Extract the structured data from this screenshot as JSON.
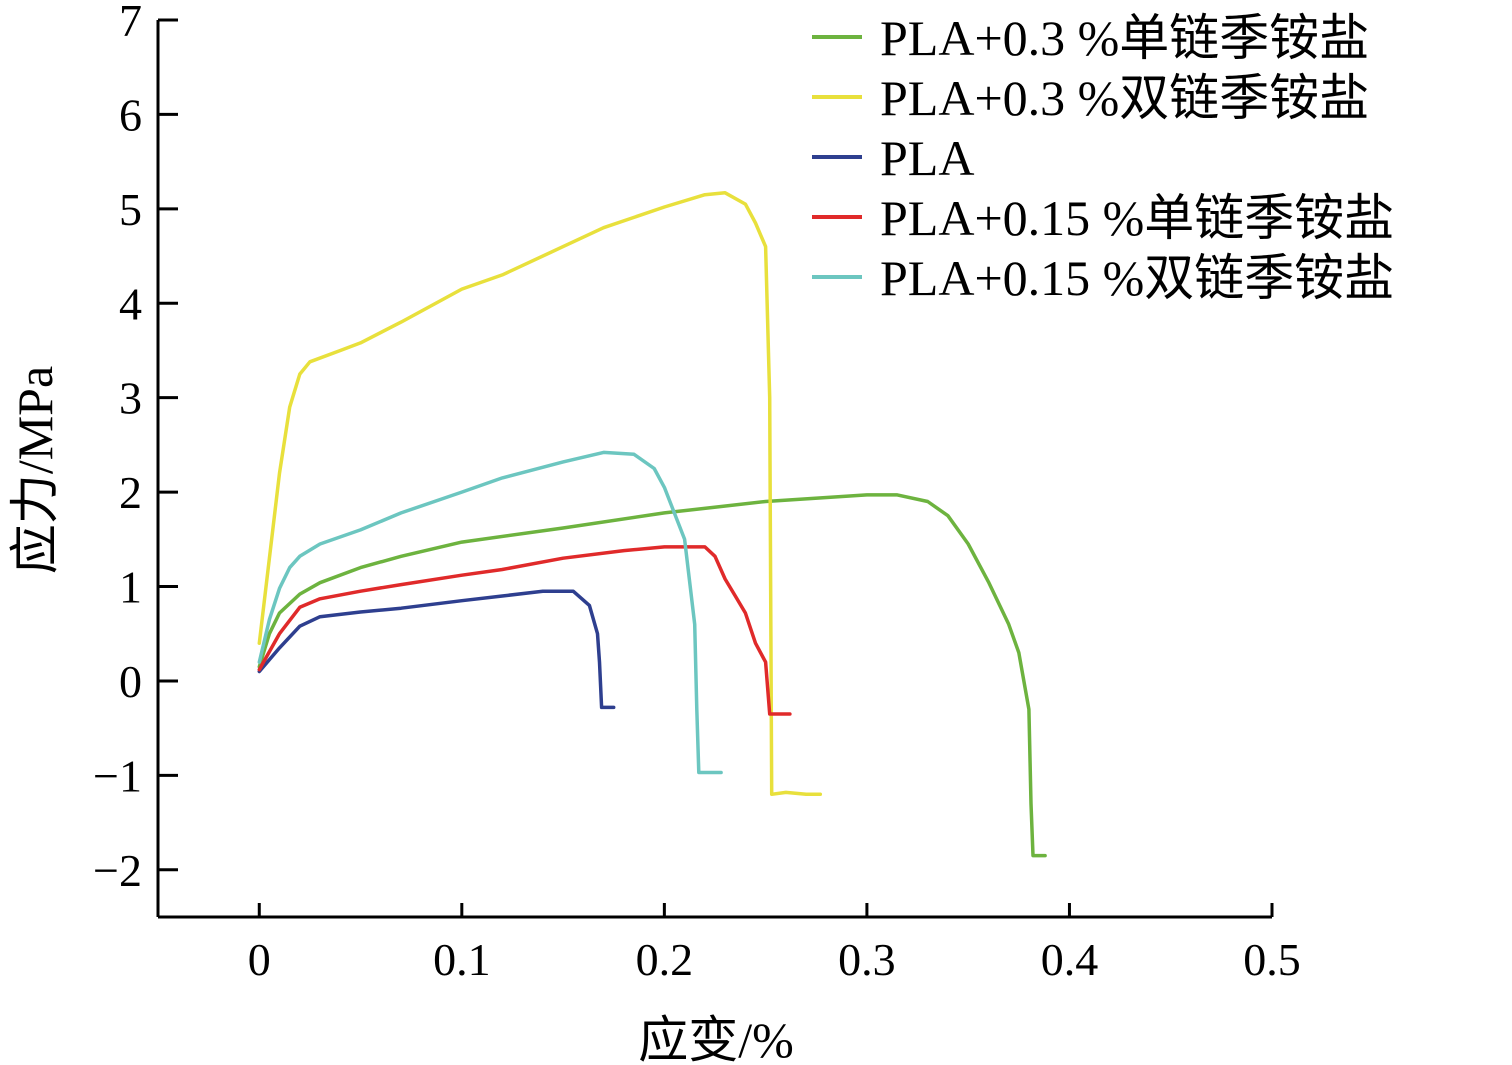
{
  "chart_data": {
    "type": "line",
    "xlabel": "应变/%",
    "ylabel": "应力/MPa",
    "xlim": [
      -0.05,
      0.5
    ],
    "ylim": [
      -2.5,
      7
    ],
    "xticks": [
      0,
      0.1,
      0.2,
      0.3,
      0.4,
      0.5
    ],
    "xtick_labels": [
      "0",
      "0.1",
      "0.2",
      "0.3",
      "0.4",
      "0.5"
    ],
    "yticks": [
      -2,
      -1,
      0,
      1,
      2,
      3,
      4,
      5,
      6,
      7
    ],
    "ytick_labels": [
      "−2",
      "−1",
      "0",
      "1",
      "2",
      "3",
      "4",
      "5",
      "6",
      "7"
    ],
    "grid": false,
    "legend_position": "top-right",
    "series": [
      {
        "name": "PLA+0.3 %单链季铵盐",
        "color": "#6db33f",
        "points": [
          [
            0,
            0.15
          ],
          [
            0.005,
            0.5
          ],
          [
            0.01,
            0.72
          ],
          [
            0.02,
            0.92
          ],
          [
            0.03,
            1.04
          ],
          [
            0.05,
            1.2
          ],
          [
            0.07,
            1.32
          ],
          [
            0.1,
            1.47
          ],
          [
            0.15,
            1.62
          ],
          [
            0.2,
            1.78
          ],
          [
            0.25,
            1.9
          ],
          [
            0.3,
            1.97
          ],
          [
            0.315,
            1.97
          ],
          [
            0.33,
            1.9
          ],
          [
            0.34,
            1.75
          ],
          [
            0.35,
            1.45
          ],
          [
            0.36,
            1.05
          ],
          [
            0.37,
            0.6
          ],
          [
            0.375,
            0.3
          ],
          [
            0.38,
            -0.3
          ],
          [
            0.381,
            -1.3
          ],
          [
            0.382,
            -1.85
          ],
          [
            0.388,
            -1.85
          ]
        ]
      },
      {
        "name": "PLA+0.3 %双链季铵盐",
        "color": "#e8e03c",
        "points": [
          [
            0,
            0.4
          ],
          [
            0.005,
            1.3
          ],
          [
            0.01,
            2.2
          ],
          [
            0.015,
            2.9
          ],
          [
            0.02,
            3.25
          ],
          [
            0.025,
            3.38
          ],
          [
            0.04,
            3.5
          ],
          [
            0.05,
            3.58
          ],
          [
            0.07,
            3.8
          ],
          [
            0.1,
            4.15
          ],
          [
            0.12,
            4.3
          ],
          [
            0.15,
            4.6
          ],
          [
            0.17,
            4.8
          ],
          [
            0.2,
            5.02
          ],
          [
            0.22,
            5.15
          ],
          [
            0.23,
            5.17
          ],
          [
            0.24,
            5.05
          ],
          [
            0.245,
            4.85
          ],
          [
            0.25,
            4.6
          ],
          [
            0.252,
            3
          ],
          [
            0.253,
            -1.2
          ],
          [
            0.26,
            -1.18
          ],
          [
            0.27,
            -1.2
          ],
          [
            0.277,
            -1.2
          ]
        ]
      },
      {
        "name": "PLA",
        "color": "#2e3f8f",
        "points": [
          [
            0,
            0.1
          ],
          [
            0.01,
            0.35
          ],
          [
            0.02,
            0.58
          ],
          [
            0.03,
            0.68
          ],
          [
            0.05,
            0.73
          ],
          [
            0.07,
            0.77
          ],
          [
            0.1,
            0.85
          ],
          [
            0.12,
            0.9
          ],
          [
            0.14,
            0.95
          ],
          [
            0.155,
            0.95
          ],
          [
            0.163,
            0.8
          ],
          [
            0.167,
            0.5
          ],
          [
            0.168,
            0.2
          ],
          [
            0.169,
            -0.28
          ],
          [
            0.175,
            -0.28
          ]
        ]
      },
      {
        "name": "PLA+0.15 %单链季铵盐",
        "color": "#e02a2a",
        "points": [
          [
            0,
            0.12
          ],
          [
            0.01,
            0.5
          ],
          [
            0.02,
            0.78
          ],
          [
            0.03,
            0.87
          ],
          [
            0.05,
            0.95
          ],
          [
            0.07,
            1.02
          ],
          [
            0.1,
            1.12
          ],
          [
            0.12,
            1.18
          ],
          [
            0.15,
            1.3
          ],
          [
            0.18,
            1.38
          ],
          [
            0.2,
            1.42
          ],
          [
            0.22,
            1.42
          ],
          [
            0.225,
            1.32
          ],
          [
            0.23,
            1.08
          ],
          [
            0.235,
            0.9
          ],
          [
            0.24,
            0.72
          ],
          [
            0.245,
            0.4
          ],
          [
            0.25,
            0.2
          ],
          [
            0.252,
            -0.35
          ],
          [
            0.262,
            -0.35
          ]
        ]
      },
      {
        "name": "PLA+0.15 %双链季铵盐",
        "color": "#6cc6c0",
        "points": [
          [
            0,
            0.2
          ],
          [
            0.005,
            0.65
          ],
          [
            0.01,
            0.98
          ],
          [
            0.015,
            1.2
          ],
          [
            0.02,
            1.32
          ],
          [
            0.03,
            1.45
          ],
          [
            0.05,
            1.6
          ],
          [
            0.07,
            1.78
          ],
          [
            0.1,
            2.0
          ],
          [
            0.12,
            2.15
          ],
          [
            0.15,
            2.32
          ],
          [
            0.17,
            2.42
          ],
          [
            0.185,
            2.4
          ],
          [
            0.195,
            2.25
          ],
          [
            0.2,
            2.05
          ],
          [
            0.21,
            1.5
          ],
          [
            0.215,
            0.6
          ],
          [
            0.216,
            -0.3
          ],
          [
            0.217,
            -0.97
          ],
          [
            0.228,
            -0.97
          ]
        ]
      }
    ]
  }
}
